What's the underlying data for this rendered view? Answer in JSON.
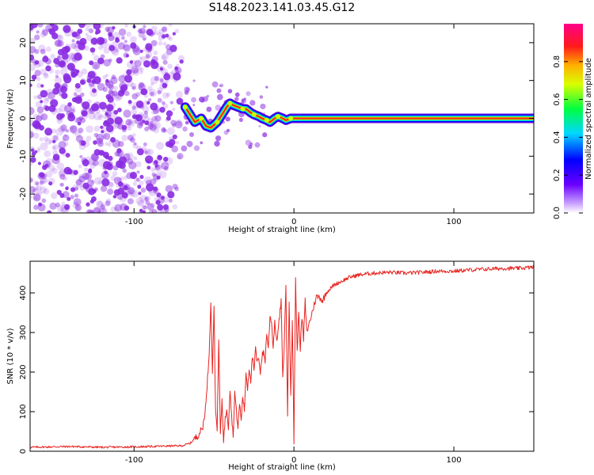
{
  "figure": {
    "title": "S148.2023.141.03.45.G12"
  },
  "chart_data": [
    {
      "type": "heatmap",
      "xlabel": "Height of straight line (km)",
      "ylabel": "Frequency (Hz)",
      "xlim": [
        -165,
        150
      ],
      "ylim": [
        -25,
        25
      ],
      "xticks": [
        -100,
        0,
        100
      ],
      "yticks": [
        -20,
        -10,
        0,
        10,
        20
      ],
      "grid": false,
      "colorbar": {
        "label": "Normalized spectral amplitude",
        "range": [
          0,
          1
        ],
        "ticks": [
          0.0,
          0.2,
          0.4,
          0.6,
          0.8
        ],
        "tick_labels": [
          "0.0",
          "0.2",
          "0.4",
          "0.6",
          "0.8"
        ],
        "colormap": "rainbow (purple-blue-cyan-green-yellow-red-magenta)"
      },
      "noise_region_x": [
        -165,
        -68
      ],
      "signal_line": {
        "x": [
          -68,
          -65,
          -62,
          -58,
          -55,
          -52,
          -48,
          -45,
          -42,
          -40,
          -38,
          -35,
          -32,
          -30,
          -27,
          -25,
          -22,
          -20,
          -17,
          -15,
          -12,
          -10,
          -7,
          -5,
          -2,
          0,
          5,
          20,
          60,
          100,
          150
        ],
        "y": [
          3,
          1,
          -1,
          0,
          -2,
          -2.5,
          -1,
          1,
          3,
          4,
          3.5,
          3,
          2.5,
          2.5,
          1.5,
          1,
          0.5,
          0,
          -0.5,
          -1,
          0,
          0.5,
          0,
          -0.5,
          0,
          0,
          0,
          0,
          0,
          0,
          0
        ]
      },
      "color_hex": {
        "noise": "#8a2be2",
        "line": "#ff2020"
      }
    },
    {
      "type": "line",
      "xlabel": "Height of straight line (km)",
      "ylabel": "SNR (10 * v/v)",
      "xlim": [
        -165,
        150
      ],
      "ylim": [
        0,
        480
      ],
      "xticks": [
        -100,
        0,
        100
      ],
      "yticks": [
        0,
        100,
        200,
        300,
        400
      ],
      "grid": false,
      "series": [
        {
          "color": "#e8231f",
          "x": [
            -165,
            -140,
            -120,
            -100,
            -80,
            -70,
            -65,
            -60,
            -57,
            -55,
            -53,
            -52,
            -51,
            -50,
            -49,
            -48,
            -47,
            -46,
            -45,
            -44,
            -43,
            -42,
            -41,
            -40,
            -39,
            -38,
            -37,
            -36,
            -35,
            -34,
            -33,
            -32,
            -31,
            -30,
            -29,
            -28,
            -27,
            -26,
            -25,
            -24,
            -23,
            -22,
            -21,
            -20,
            -19,
            -18,
            -17,
            -16,
            -15,
            -14,
            -13,
            -12,
            -11,
            -10,
            -9,
            -8,
            -7,
            -6,
            -5,
            -4,
            -3,
            -2,
            -1,
            0,
            1,
            2,
            3,
            4,
            5,
            6,
            7,
            8,
            10,
            12,
            14,
            16,
            18,
            20,
            25,
            30,
            35,
            40,
            45,
            50,
            60,
            70,
            80,
            90,
            100,
            110,
            120,
            130,
            140,
            150
          ],
          "y": [
            10,
            12,
            10,
            11,
            13,
            14,
            20,
            40,
            60,
            120,
            250,
            380,
            200,
            360,
            100,
            60,
            280,
            40,
            130,
            30,
            80,
            110,
            60,
            160,
            90,
            40,
            150,
            100,
            60,
            120,
            80,
            140,
            100,
            200,
            160,
            210,
            180,
            240,
            200,
            260,
            220,
            240,
            200,
            240,
            250,
            230,
            300,
            260,
            340,
            330,
            260,
            330,
            280,
            300,
            340,
            380,
            180,
            280,
            420,
            90,
            380,
            150,
            330,
            20,
            440,
            250,
            350,
            260,
            340,
            280,
            380,
            300,
            330,
            360,
            390,
            390,
            380,
            400,
            420,
            430,
            440,
            445,
            448,
            450,
            452,
            450,
            452,
            455,
            455,
            458,
            460,
            462,
            462,
            465
          ]
        }
      ]
    }
  ]
}
